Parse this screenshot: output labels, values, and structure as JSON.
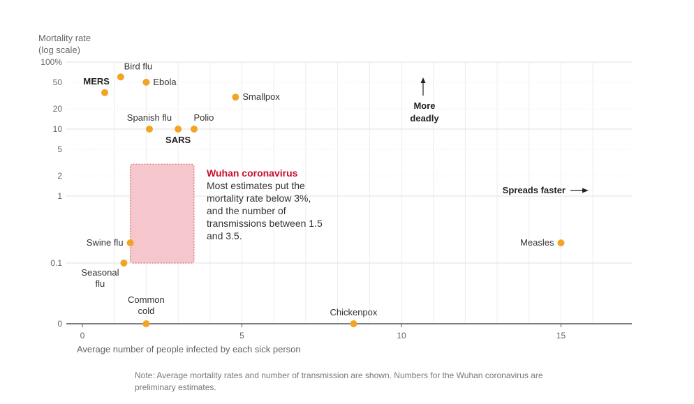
{
  "chart_data": {
    "type": "scatter",
    "title": "",
    "ylabel": [
      "Mortality rate",
      "(log scale)"
    ],
    "xlabel": "Average number of people infected by each sick person",
    "x_ticks": [
      {
        "value": 0,
        "label": "0"
      },
      {
        "value": 5,
        "label": "5"
      },
      {
        "value": 10,
        "label": "10"
      },
      {
        "value": 15,
        "label": "15"
      }
    ],
    "y_ticks": [
      {
        "value": 0,
        "label": "0"
      },
      {
        "value": 0.1,
        "label": "0.1"
      },
      {
        "value": 1,
        "label": "1"
      },
      {
        "value": 2,
        "label": "2"
      },
      {
        "value": 5,
        "label": "5"
      },
      {
        "value": 10,
        "label": "10"
      },
      {
        "value": 20,
        "label": "20"
      },
      {
        "value": 50,
        "label": "50"
      },
      {
        "value": 100,
        "label": "100%"
      }
    ],
    "xlim": [
      0,
      17
    ],
    "ylim_log": [
      0.1,
      100
    ],
    "points": [
      {
        "name": "MERS",
        "x": 0.7,
        "y": 35,
        "bold": true,
        "anchor": "left"
      },
      {
        "name": "Bird flu",
        "x": 1.2,
        "y": 60,
        "bold": false,
        "anchor": "above"
      },
      {
        "name": "Ebola",
        "x": 2.0,
        "y": 50,
        "bold": false,
        "anchor": "right"
      },
      {
        "name": "Smallpox",
        "x": 4.8,
        "y": 30,
        "bold": false,
        "anchor": "right"
      },
      {
        "name": "Spanish flu",
        "x": 2.1,
        "y": 10,
        "bold": false,
        "anchor": "above"
      },
      {
        "name": "SARS",
        "x": 3.0,
        "y": 10,
        "bold": true,
        "anchor": "below"
      },
      {
        "name": "Polio",
        "x": 3.5,
        "y": 10,
        "bold": false,
        "anchor": "above-right"
      },
      {
        "name": "Swine flu",
        "x": 1.5,
        "y": 0.2,
        "bold": false,
        "anchor": "left"
      },
      {
        "name": "Measles",
        "x": 15,
        "y": 0.2,
        "bold": false,
        "anchor": "left"
      },
      {
        "name": "Chickenpox",
        "x": 8.5,
        "y": 0,
        "bold": false,
        "anchor": "above"
      }
    ],
    "multiline_points": [
      {
        "lines": [
          "Seasonal",
          "flu"
        ],
        "x": 1.3,
        "y": 0.1,
        "anchor": "below-left"
      },
      {
        "lines": [
          "Common",
          "cold"
        ],
        "x": 2.0,
        "y": 0,
        "anchor": "above"
      }
    ],
    "highlight": {
      "name": "Wuhan coronavirus",
      "x_range": [
        1.5,
        3.5
      ],
      "y_range": [
        0.1,
        3
      ],
      "title": "Wuhan coronavirus",
      "text": "Most estimates put the mortality rate below 3%, and the number of transmissions between 1.5 and 3.5."
    },
    "annotations": {
      "more_deadly": [
        "More",
        "deadly"
      ],
      "spreads_faster": "Spreads faster"
    },
    "colors": {
      "point": "#f2a523",
      "highlight_fill": "#f5c6cb",
      "highlight_border": "#e07070",
      "accent_red": "#c8102e",
      "axis": "#555555",
      "grid": "#ececec"
    }
  },
  "note": "Note: Average mortality rates and number of transmission are shown. Numbers for the Wuhan coronavirus are preliminary estimates."
}
